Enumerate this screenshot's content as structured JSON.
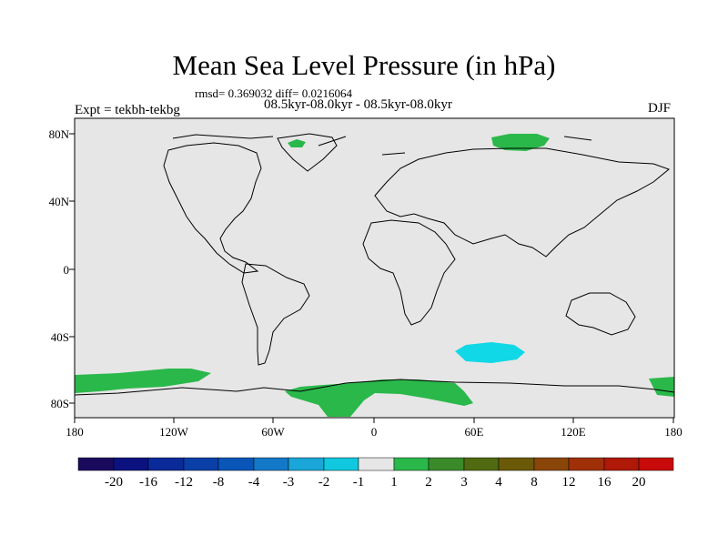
{
  "title": "Mean Sea Level Pressure (in hPa)",
  "stats": "rmsd= 0.369032 diff= 0.0216064",
  "period": "08.5kyr-08.0kyr - 08.5kyr-08.0kyr",
  "experiment": "Expt = tekbh-tekbg",
  "season": "DJF",
  "lat_ticks": [
    "80N",
    "40N",
    "0",
    "40S",
    "80S"
  ],
  "lon_ticks": [
    "180",
    "120W",
    "60W",
    "0",
    "60E",
    "120E",
    "180"
  ],
  "colorbar": {
    "labels": [
      "-20",
      "-16",
      "-12",
      "-8",
      "-4",
      "-3",
      "-2",
      "-1",
      "1",
      "2",
      "3",
      "4",
      "8",
      "12",
      "16",
      "20"
    ],
    "colors": [
      "#1a0a5e",
      "#0b1280",
      "#0a2a9a",
      "#0a3fa8",
      "#0a55b8",
      "#1478c8",
      "#1aa6d8",
      "#10c8e0",
      "#e6e6e6",
      "#2ab84a",
      "#3a8a2a",
      "#4f6a10",
      "#6a5a08",
      "#8a4508",
      "#a03008",
      "#b01808",
      "#c80a0a"
    ]
  },
  "colors": {
    "land_ocean_background": "#e6e6e6",
    "positive_anomaly": "#2ab84a",
    "negative_anomaly": "#10d8e6"
  }
}
